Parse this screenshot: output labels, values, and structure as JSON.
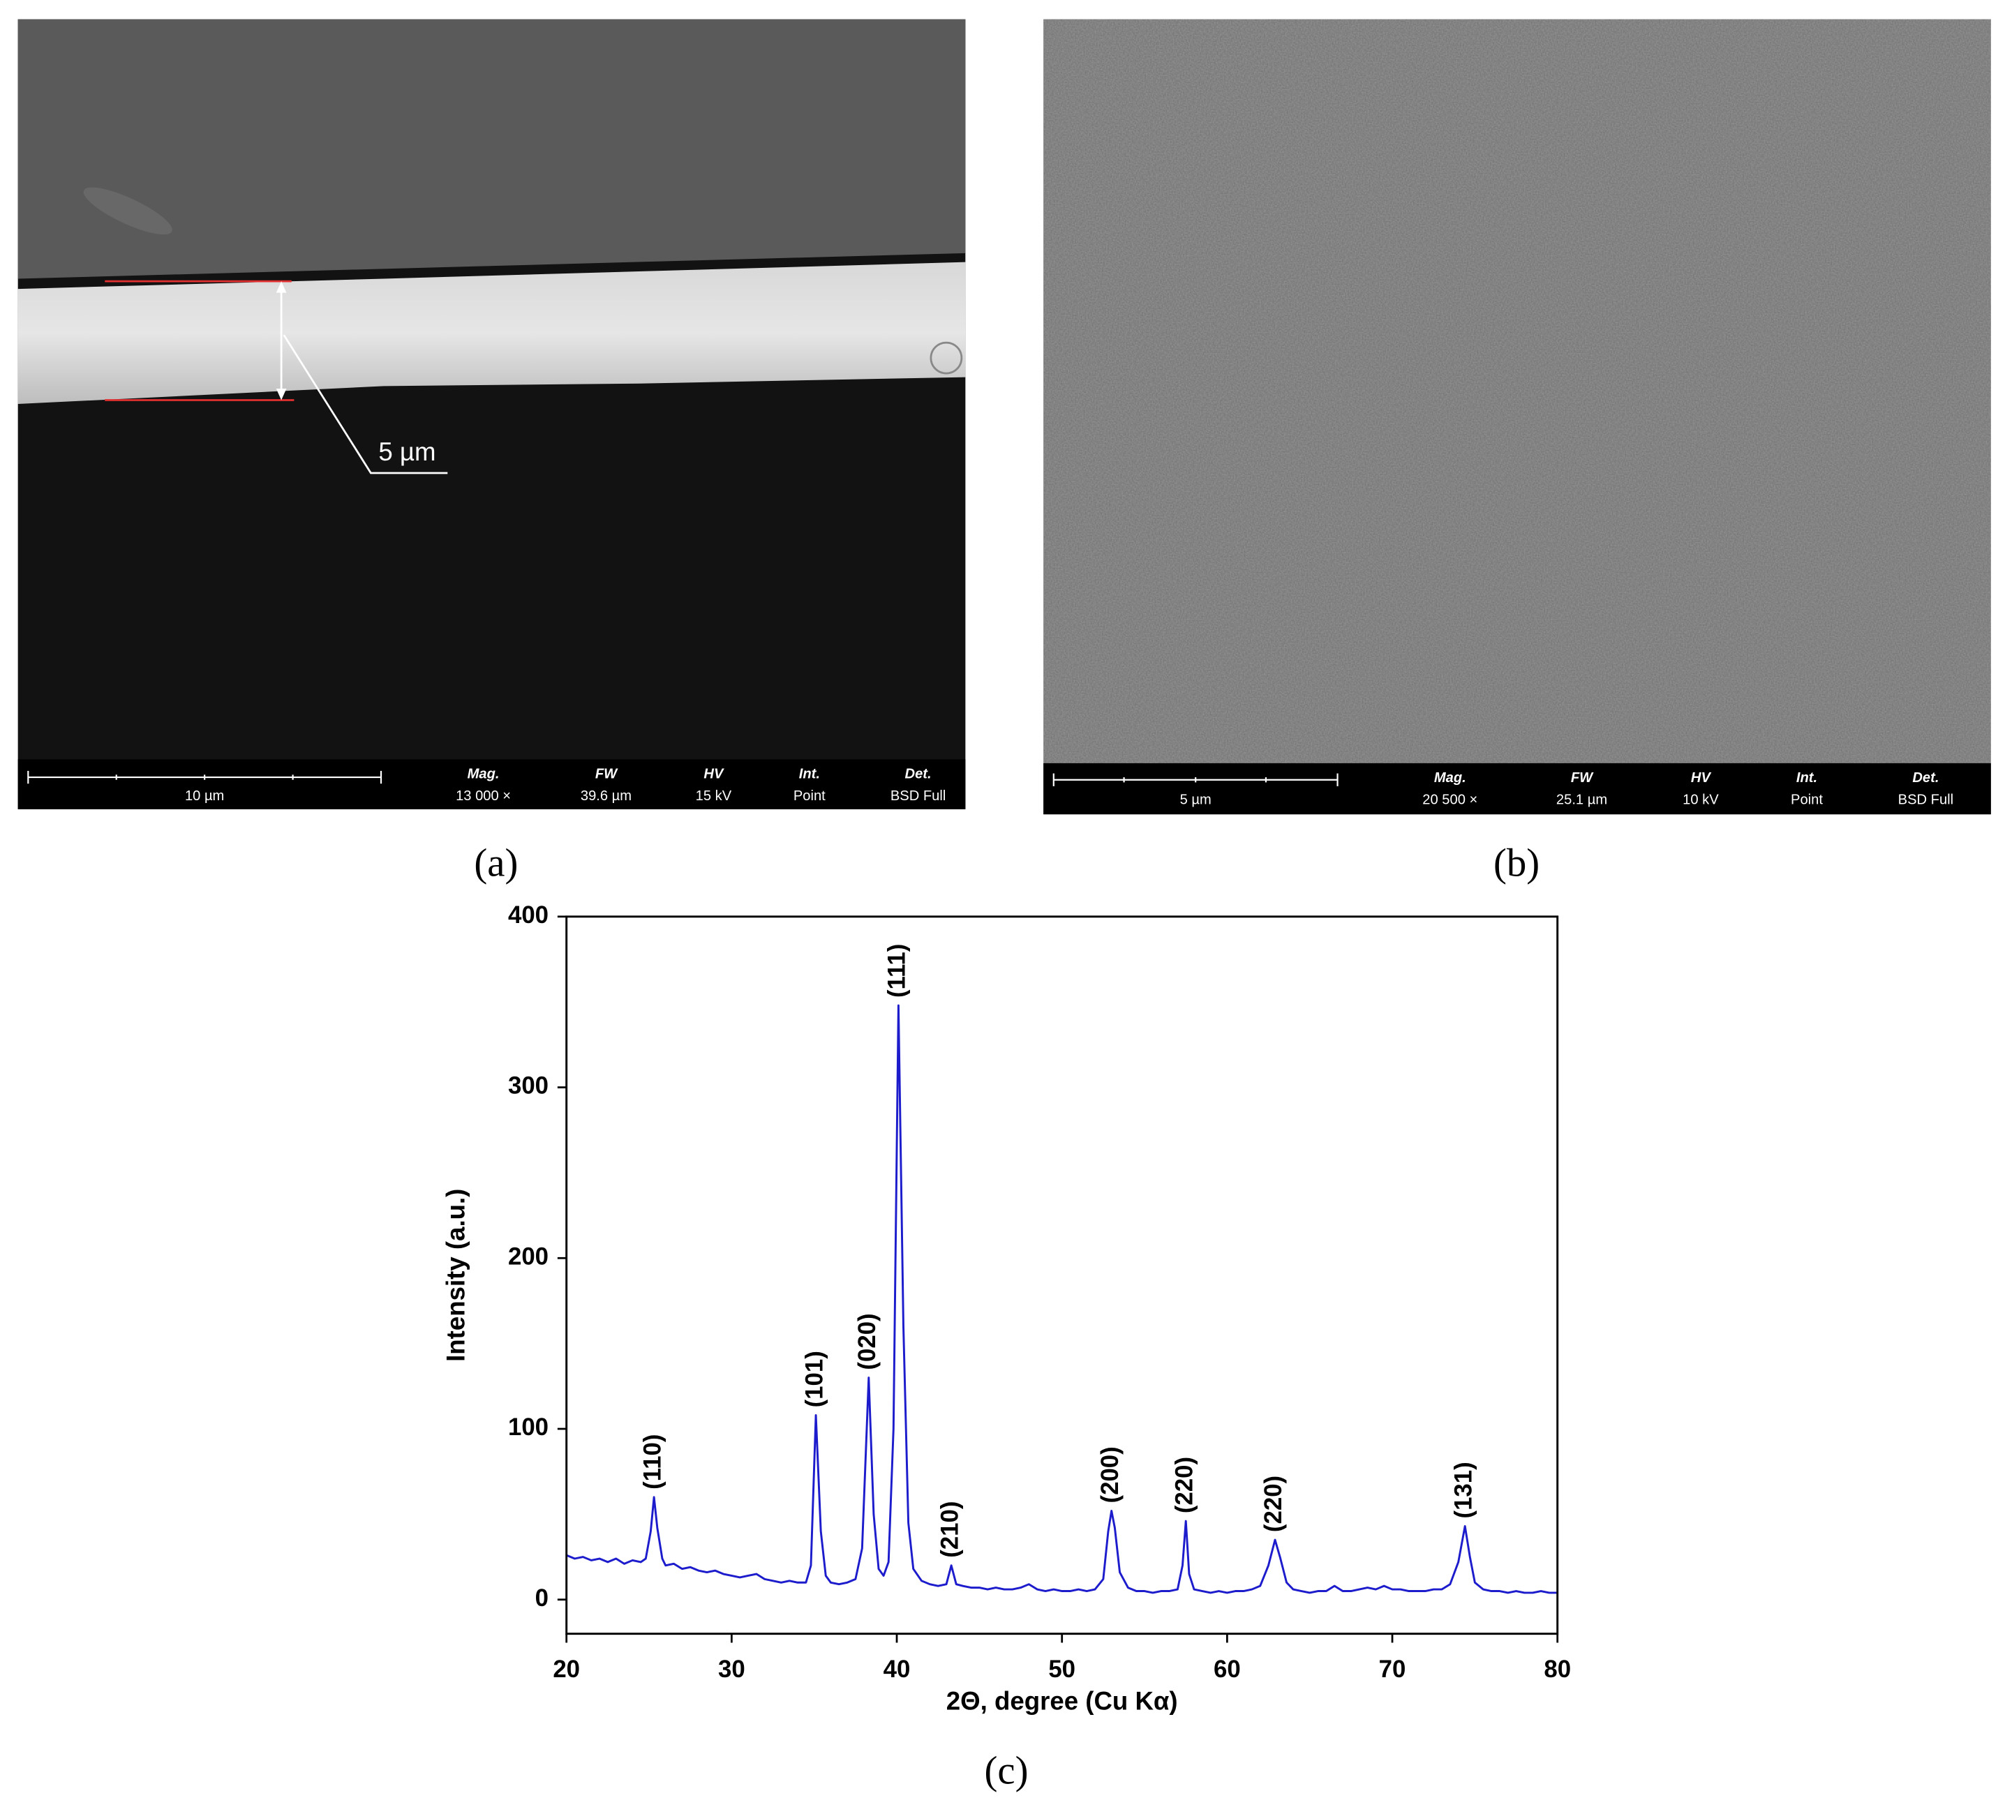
{
  "panels": [
    {
      "label": "(a)",
      "scale_bar": "10 µm",
      "annotation": "5 µm",
      "info": [
        {
          "name": "Mag.",
          "value": "13 000 ×"
        },
        {
          "name": "FW",
          "value": "39.6 µm"
        },
        {
          "name": "HV",
          "value": "15 kV"
        },
        {
          "name": "Int.",
          "value": "Point"
        },
        {
          "name": "Det.",
          "value": "BSD Full"
        }
      ]
    },
    {
      "label": "(b)",
      "scale_bar": "5 µm",
      "info": [
        {
          "name": "Mag.",
          "value": "20 500 ×"
        },
        {
          "name": "FW",
          "value": "25.1 µm"
        },
        {
          "name": "HV",
          "value": "10 kV"
        },
        {
          "name": "Int.",
          "value": "Point"
        },
        {
          "name": "Det.",
          "value": "BSD Full"
        }
      ]
    }
  ],
  "chart_data": {
    "type": "line",
    "label": "(c)",
    "x_label": "2Θ, degree (Cu Kα)",
    "y_label": "Intensity (a.u.)",
    "color": "#1c1ccc",
    "x": [
      20,
      20.5,
      21,
      21.5,
      22,
      22.5,
      23,
      23.5,
      24,
      24.5,
      24.8,
      25.1,
      25.3,
      25.5,
      25.8,
      26,
      26.5,
      27,
      27.5,
      28,
      28.5,
      29,
      29.5,
      30,
      30.5,
      31,
      31.5,
      32,
      32.5,
      33,
      33.5,
      34,
      34.5,
      34.8,
      35.1,
      35.4,
      35.7,
      36,
      36.5,
      37,
      37.5,
      37.9,
      38.3,
      38.6,
      38.9,
      39.2,
      39.5,
      39.8,
      40.1,
      40.4,
      40.7,
      41,
      41.5,
      42,
      42.5,
      43,
      43.3,
      43.6,
      44,
      44.5,
      45,
      45.5,
      46,
      46.5,
      47,
      47.5,
      48,
      48.5,
      49,
      49.5,
      50,
      50.5,
      51,
      51.5,
      52,
      52.5,
      52.8,
      53,
      53.2,
      53.5,
      54,
      54.5,
      55,
      55.5,
      56,
      56.5,
      57,
      57.3,
      57.5,
      57.7,
      58,
      58.5,
      59,
      59.5,
      60,
      60.5,
      61,
      61.5,
      62,
      62.5,
      62.9,
      63.2,
      63.6,
      64,
      64.5,
      65,
      65.5,
      66,
      66.5,
      67,
      67.5,
      68,
      68.5,
      69,
      69.5,
      70,
      70.5,
      71,
      71.5,
      72,
      72.5,
      73,
      73.5,
      74,
      74.4,
      74.7,
      75,
      75.5,
      76,
      76.5,
      77,
      77.5,
      78,
      78.5,
      79,
      79.5,
      80
    ],
    "values": [
      26,
      24,
      25,
      23,
      24,
      22,
      24,
      21,
      23,
      22,
      24,
      40,
      60,
      42,
      24,
      20,
      21,
      18,
      19,
      17,
      16,
      17,
      15,
      14,
      13,
      14,
      15,
      12,
      11,
      10,
      11,
      10,
      10,
      20,
      108,
      40,
      14,
      10,
      9,
      10,
      12,
      30,
      130,
      50,
      18,
      14,
      22,
      100,
      348,
      160,
      45,
      18,
      11,
      9,
      8,
      9,
      20,
      9,
      8,
      7,
      7,
      6,
      7,
      6,
      6,
      7,
      9,
      6,
      5,
      6,
      5,
      5,
      6,
      5,
      6,
      12,
      40,
      52,
      42,
      16,
      7,
      5,
      5,
      4,
      5,
      5,
      6,
      20,
      46,
      15,
      6,
      5,
      4,
      5,
      4,
      5,
      5,
      6,
      8,
      20,
      35,
      25,
      10,
      6,
      5,
      4,
      5,
      5,
      8,
      5,
      5,
      6,
      7,
      6,
      8,
      6,
      6,
      5,
      5,
      5,
      6,
      6,
      9,
      22,
      43,
      25,
      10,
      6,
      5,
      5,
      4,
      5,
      4,
      4,
      5,
      4,
      4
    ],
    "annotations": [
      {
        "text": "(110)",
        "x": 25.3,
        "y": 60
      },
      {
        "text": "(101)",
        "x": 35.1,
        "y": 108
      },
      {
        "text": "(020)",
        "x": 38.3,
        "y": 130
      },
      {
        "text": "(111)",
        "x": 40.1,
        "y": 348
      },
      {
        "text": "(210)",
        "x": 43.3,
        "y": 20
      },
      {
        "text": "(200)",
        "x": 53.0,
        "y": 52
      },
      {
        "text": "(220)",
        "x": 57.5,
        "y": 46
      },
      {
        "text": "(220)",
        "x": 62.9,
        "y": 35
      },
      {
        "text": "(131)",
        "x": 74.4,
        "y": 43
      }
    ],
    "xlim": [
      20,
      80
    ],
    "xticks": [
      20,
      30,
      40,
      50,
      60,
      70,
      80
    ],
    "ylim": [
      -20,
      400
    ],
    "yticks": [
      0,
      100,
      200,
      300,
      400
    ]
  }
}
